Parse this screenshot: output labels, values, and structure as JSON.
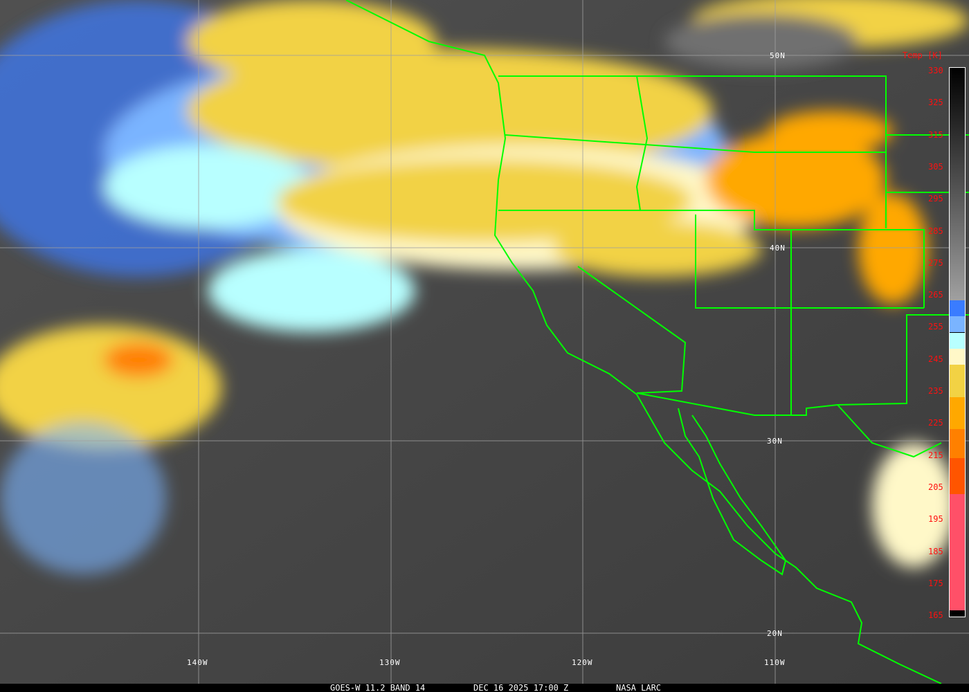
{
  "caption": {
    "satellite": "GOES-W 11.2 BAND 14",
    "datetime": "DEC 16 2025 17:00 Z",
    "source": "NASA LARC"
  },
  "grid_labels": {
    "lat": [
      "50N",
      "40N",
      "30N",
      "20N"
    ],
    "lon": [
      "140W",
      "130W",
      "120W",
      "110W"
    ]
  },
  "colorbar": {
    "title": "Temp [K]",
    "ticks": [
      "330",
      "325",
      "315",
      "305",
      "295",
      "285",
      "275",
      "265",
      "255",
      "245",
      "235",
      "225",
      "215",
      "205",
      "195",
      "185",
      "175",
      "165"
    ],
    "segments": [
      {
        "from": 330,
        "to": 258,
        "color": "gradient #000000-#a0a0a0"
      },
      {
        "from": 258,
        "to": 253,
        "color": "#3a7cff"
      },
      {
        "from": 253,
        "to": 248,
        "color": "#7ab4ff"
      },
      {
        "from": 248,
        "to": 243,
        "color": "#b8ffff"
      },
      {
        "from": 243,
        "to": 238,
        "color": "#fff8c8"
      },
      {
        "from": 238,
        "to": 228,
        "color": "#f2d244"
      },
      {
        "from": 228,
        "to": 218,
        "color": "#ffa800"
      },
      {
        "from": 218,
        "to": 209,
        "color": "#ff8000"
      },
      {
        "from": 209,
        "to": 198,
        "color": "#ff5500"
      },
      {
        "from": 198,
        "to": 162,
        "color": "#ff5068"
      },
      {
        "from": 162,
        "to": 160,
        "color": "#000000"
      }
    ]
  },
  "colors": {
    "boundaries": "#00ff00",
    "grid": "#a0a0a0",
    "labels": "#ff1010"
  }
}
